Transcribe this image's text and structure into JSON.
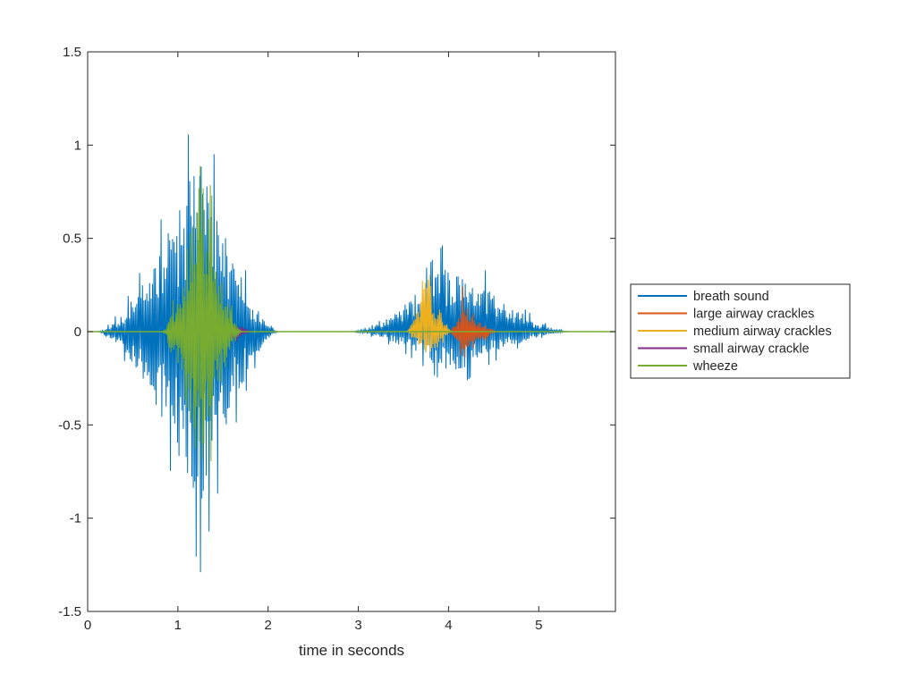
{
  "chart_data": {
    "type": "line",
    "title": "",
    "xlabel": "time in seconds",
    "ylabel": "",
    "xlim": [
      0,
      5.85
    ],
    "ylim": [
      -1.5,
      1.5
    ],
    "x_ticks": [
      0,
      1,
      2,
      3,
      4,
      5
    ],
    "y_ticks": [
      1.5,
      1,
      0.5,
      0,
      -0.5,
      -1,
      -1.5
    ],
    "x_tick_labels": [
      "0",
      "1",
      "2",
      "3",
      "4",
      "5"
    ],
    "y_tick_labels": [
      "1.5",
      "1",
      "0.5",
      "0",
      "-0.5",
      "-1",
      "-1.5"
    ],
    "grid": false,
    "legend_position": "outside-right",
    "series": [
      {
        "name": "breath sound",
        "color": "#0072BD",
        "segments": [
          {
            "start": 0.1,
            "end": 2.12,
            "peak_time": 1.25,
            "amp_pos": 1.29,
            "amp_neg": -1.29,
            "seed": 11
          },
          {
            "start": 2.9,
            "end": 5.35,
            "peak_time": 4.05,
            "amp_pos": 0.55,
            "amp_neg": -0.32,
            "seed": 23
          }
        ]
      },
      {
        "name": "large airway crackles",
        "color": "#D95319",
        "segments": [
          {
            "start": 4.0,
            "end": 4.56,
            "peak_time": 4.15,
            "amp_pos": 0.25,
            "amp_neg": -0.25,
            "seed": 37
          }
        ]
      },
      {
        "name": "medium airway crackles",
        "color": "#EDB120",
        "segments": [
          {
            "start": 3.52,
            "end": 4.05,
            "peak_time": 3.78,
            "amp_pos": 0.45,
            "amp_neg": -0.25,
            "seed": 41
          }
        ]
      },
      {
        "name": "small airway crackle",
        "color": "#7E2F8E",
        "segments": [
          {
            "start": 1.5,
            "end": 1.82,
            "peak_time": 1.65,
            "amp_pos": 0.1,
            "amp_neg": -0.1,
            "seed": 53
          }
        ]
      },
      {
        "name": "wheeze",
        "color": "#77AC30",
        "segments": [
          {
            "start": 0.82,
            "end": 1.72,
            "peak_time": 1.25,
            "amp_pos": 1.2,
            "amp_neg": -1.1,
            "seed": 67
          }
        ]
      }
    ]
  }
}
